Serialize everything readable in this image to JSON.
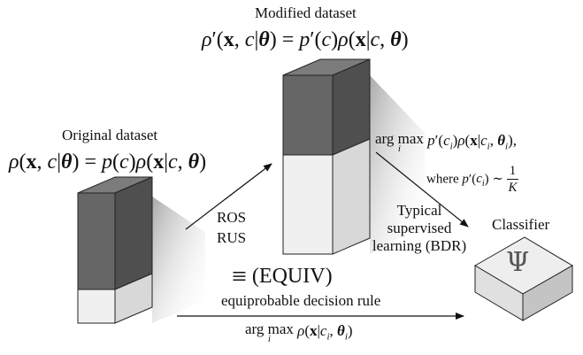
{
  "labels": {
    "modified_title": "Modified dataset",
    "original_title": "Original dataset",
    "ros": "ROS",
    "rus": "RUS",
    "typical": "Typical",
    "supervised": "supervised",
    "learning_bdr": "learning (BDR)",
    "classifier": "Classifier",
    "classifier_symbol": "Ψ",
    "equiv": "(EQUIV)",
    "equiv_symbol": "≡",
    "equiprobable": "equiprobable decision rule",
    "where": "where"
  },
  "colors": {
    "dark_block": "#666666",
    "dark_block_side": "#4f4f4f",
    "dark_block_top": "#7c7c7c",
    "light_block": "#f0f0f0",
    "light_block_side": "#d8d8d8",
    "light_block_top": "#fafafa",
    "classifier_top": "#eeeeee",
    "classifier_front": "#e0e0e0",
    "classifier_side": "#c4c4c4",
    "arrow": "#111111"
  }
}
